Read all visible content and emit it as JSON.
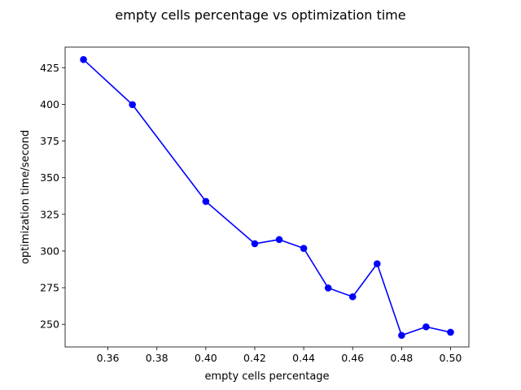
{
  "chart_data": {
    "type": "line",
    "title": "empty cells percentage vs optimization time",
    "xlabel": "empty cells percentage",
    "ylabel": "optimization time/second",
    "xlim": [
      0.3425,
      0.5075
    ],
    "ylim": [
      234.6,
      439.0
    ],
    "x_ticks": [
      0.36,
      0.38,
      0.4,
      0.42,
      0.44,
      0.46,
      0.48,
      0.5
    ],
    "x_tick_labels": [
      "0.36",
      "0.38",
      "0.40",
      "0.42",
      "0.44",
      "0.46",
      "0.48",
      "0.50"
    ],
    "y_ticks": [
      250,
      275,
      300,
      325,
      350,
      375,
      400,
      425
    ],
    "y_tick_labels": [
      "250",
      "275",
      "300",
      "325",
      "350",
      "375",
      "400",
      "425"
    ],
    "grid": false,
    "series": [
      {
        "color": "#0000ff",
        "marker": "circle",
        "x": [
          0.35,
          0.37,
          0.4,
          0.42,
          0.43,
          0.44,
          0.45,
          0.46,
          0.47,
          0.48,
          0.49,
          0.5
        ],
        "y": [
          430.5,
          399.8,
          333.8,
          305.0,
          307.8,
          301.8,
          274.8,
          268.8,
          291.3,
          242.5,
          248.3,
          244.6
        ]
      }
    ]
  }
}
